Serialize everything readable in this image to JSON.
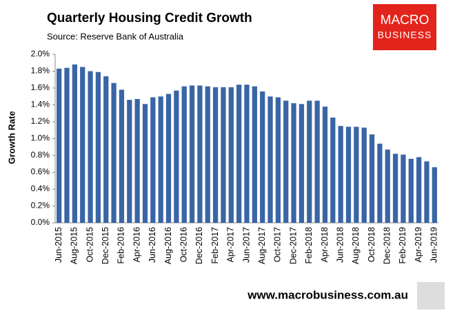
{
  "chart_data": {
    "type": "bar",
    "title": "Quarterly Housing Credit Growth",
    "subtitle": "Source: Reserve Bank of Australia",
    "y_label": "Growth Rate",
    "color": "#3a65a5",
    "categories": [
      "Jun-2015",
      null,
      "Aug-2015",
      null,
      "Oct-2015",
      null,
      "Dec-2015",
      null,
      "Feb-2016",
      null,
      "Apr-2016",
      null,
      "Jun-2016",
      null,
      "Aug-2016",
      null,
      "Oct-2016",
      null,
      "Dec-2016",
      null,
      "Feb-2017",
      null,
      "Apr-2017",
      null,
      "Jun-2017",
      null,
      "Aug-2017",
      null,
      "Oct-2017",
      null,
      "Dec-2017",
      null,
      "Feb-2018",
      null,
      "Apr-2018",
      null,
      "Jun-2018",
      null,
      "Aug-2018",
      null,
      "Oct-2018",
      null,
      "Dec-2018",
      null,
      "Feb-2019",
      null,
      "Apr-2019",
      null,
      "Jun-2019"
    ],
    "values": [
      1.83,
      1.84,
      1.88,
      1.85,
      1.8,
      1.79,
      1.74,
      1.66,
      1.58,
      1.46,
      1.47,
      1.41,
      1.49,
      1.5,
      1.53,
      1.57,
      1.62,
      1.63,
      1.63,
      1.62,
      1.61,
      1.61,
      1.61,
      1.64,
      1.64,
      1.62,
      1.56,
      1.5,
      1.49,
      1.45,
      1.42,
      1.41,
      1.45,
      1.45,
      1.38,
      1.25,
      1.15,
      1.14,
      1.14,
      1.13,
      1.05,
      0.94,
      0.87,
      0.82,
      0.81,
      0.76,
      0.78,
      0.73,
      0.66
    ],
    "ylim": [
      0,
      2.0
    ],
    "yticks": [
      {
        "value": 0,
        "label": "0.0%"
      },
      {
        "value": 0.2,
        "label": "0.2%"
      },
      {
        "value": 0.4,
        "label": "0.4%"
      },
      {
        "value": 0.6,
        "label": "0.6%"
      },
      {
        "value": 0.8,
        "label": "0.8%"
      },
      {
        "value": 1.0,
        "label": "1.0%"
      },
      {
        "value": 1.2,
        "label": "1.2%"
      },
      {
        "value": 1.4,
        "label": "1.4%"
      },
      {
        "value": 1.6,
        "label": "1.6%"
      },
      {
        "value": 1.8,
        "label": "1.8%"
      },
      {
        "value": 2.0,
        "label": "2.0%"
      }
    ],
    "grid": false
  },
  "logo": {
    "line1": "MACRO",
    "line2": "BUSINESS"
  },
  "footer": "www.macrobusiness.com.au"
}
